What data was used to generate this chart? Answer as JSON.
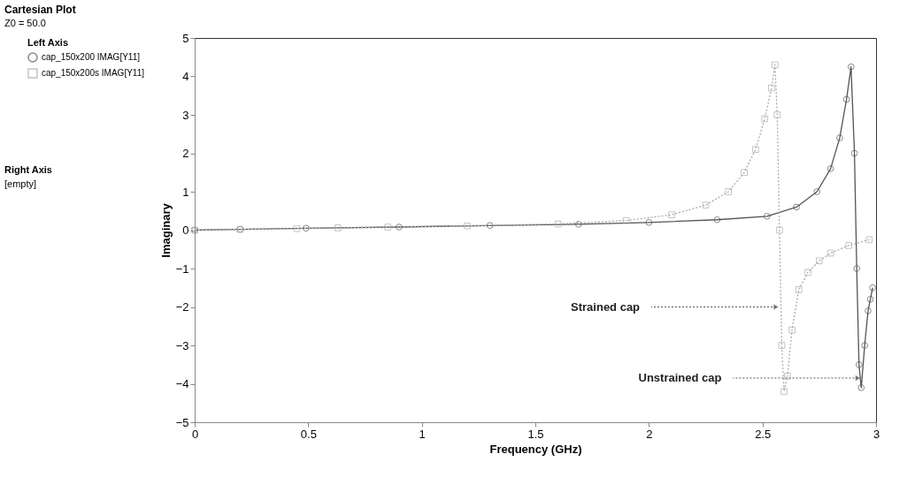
{
  "chart_data": {
    "type": "line",
    "title": "Cartesian Plot",
    "subtitle": "Z0 = 50.0",
    "xlabel": "Frequency (GHz)",
    "ylabel": "Imaginary",
    "legend_title": "Left Axis",
    "legend": "left",
    "xlim": [
      0,
      3
    ],
    "xticks": [
      0,
      0.5,
      1,
      1.5,
      2,
      2.5,
      3
    ],
    "ylim": [
      -5,
      5
    ],
    "yticks": [
      -5,
      -4,
      -3,
      -2,
      -1,
      0,
      1,
      2,
      3,
      4,
      5
    ],
    "grid": false,
    "series": [
      {
        "name": "cap_150x200 IMAG[Y11]",
        "color": "#555555",
        "marker": "circle",
        "line_style": "solid",
        "x": [
          0,
          0.2,
          0.49,
          0.9,
          1.3,
          1.69,
          2.0,
          2.3,
          2.52,
          2.65,
          2.74,
          2.8,
          2.84,
          2.87,
          2.89,
          2.905,
          2.915,
          2.925,
          2.935,
          2.95,
          2.965,
          2.975,
          2.985
        ],
        "values": [
          0,
          0.02,
          0.05,
          0.08,
          0.12,
          0.15,
          0.2,
          0.27,
          0.36,
          0.6,
          1.0,
          1.6,
          2.4,
          3.4,
          4.25,
          2.0,
          -1.0,
          -3.5,
          -4.1,
          -3.0,
          -2.1,
          -1.8,
          -1.5
        ]
      },
      {
        "name": "cap_150x200s IMAG[Y11]",
        "color": "#aaaaaa",
        "marker": "square",
        "line_style": "dotted",
        "x": [
          0,
          0.2,
          0.45,
          0.63,
          0.85,
          1.2,
          1.6,
          1.9,
          2.1,
          2.25,
          2.35,
          2.42,
          2.47,
          2.51,
          2.54,
          2.555,
          2.565,
          2.575,
          2.585,
          2.595,
          2.61,
          2.63,
          2.66,
          2.7,
          2.75,
          2.8,
          2.88,
          2.97
        ],
        "values": [
          0,
          0.02,
          0.04,
          0.06,
          0.08,
          0.11,
          0.16,
          0.25,
          0.4,
          0.65,
          1.0,
          1.5,
          2.1,
          2.9,
          3.7,
          4.3,
          3.0,
          0,
          -3.0,
          -4.2,
          -3.8,
          -2.6,
          -1.55,
          -1.1,
          -0.8,
          -0.6,
          -0.4,
          -0.25
        ]
      }
    ],
    "annotations": [
      {
        "text": "Strained cap",
        "x": 2.56,
        "y": -2
      },
      {
        "text": "Unstrained cap",
        "x": 2.92,
        "y": -3.85
      },
      "Right Axis",
      "[empty]"
    ]
  }
}
